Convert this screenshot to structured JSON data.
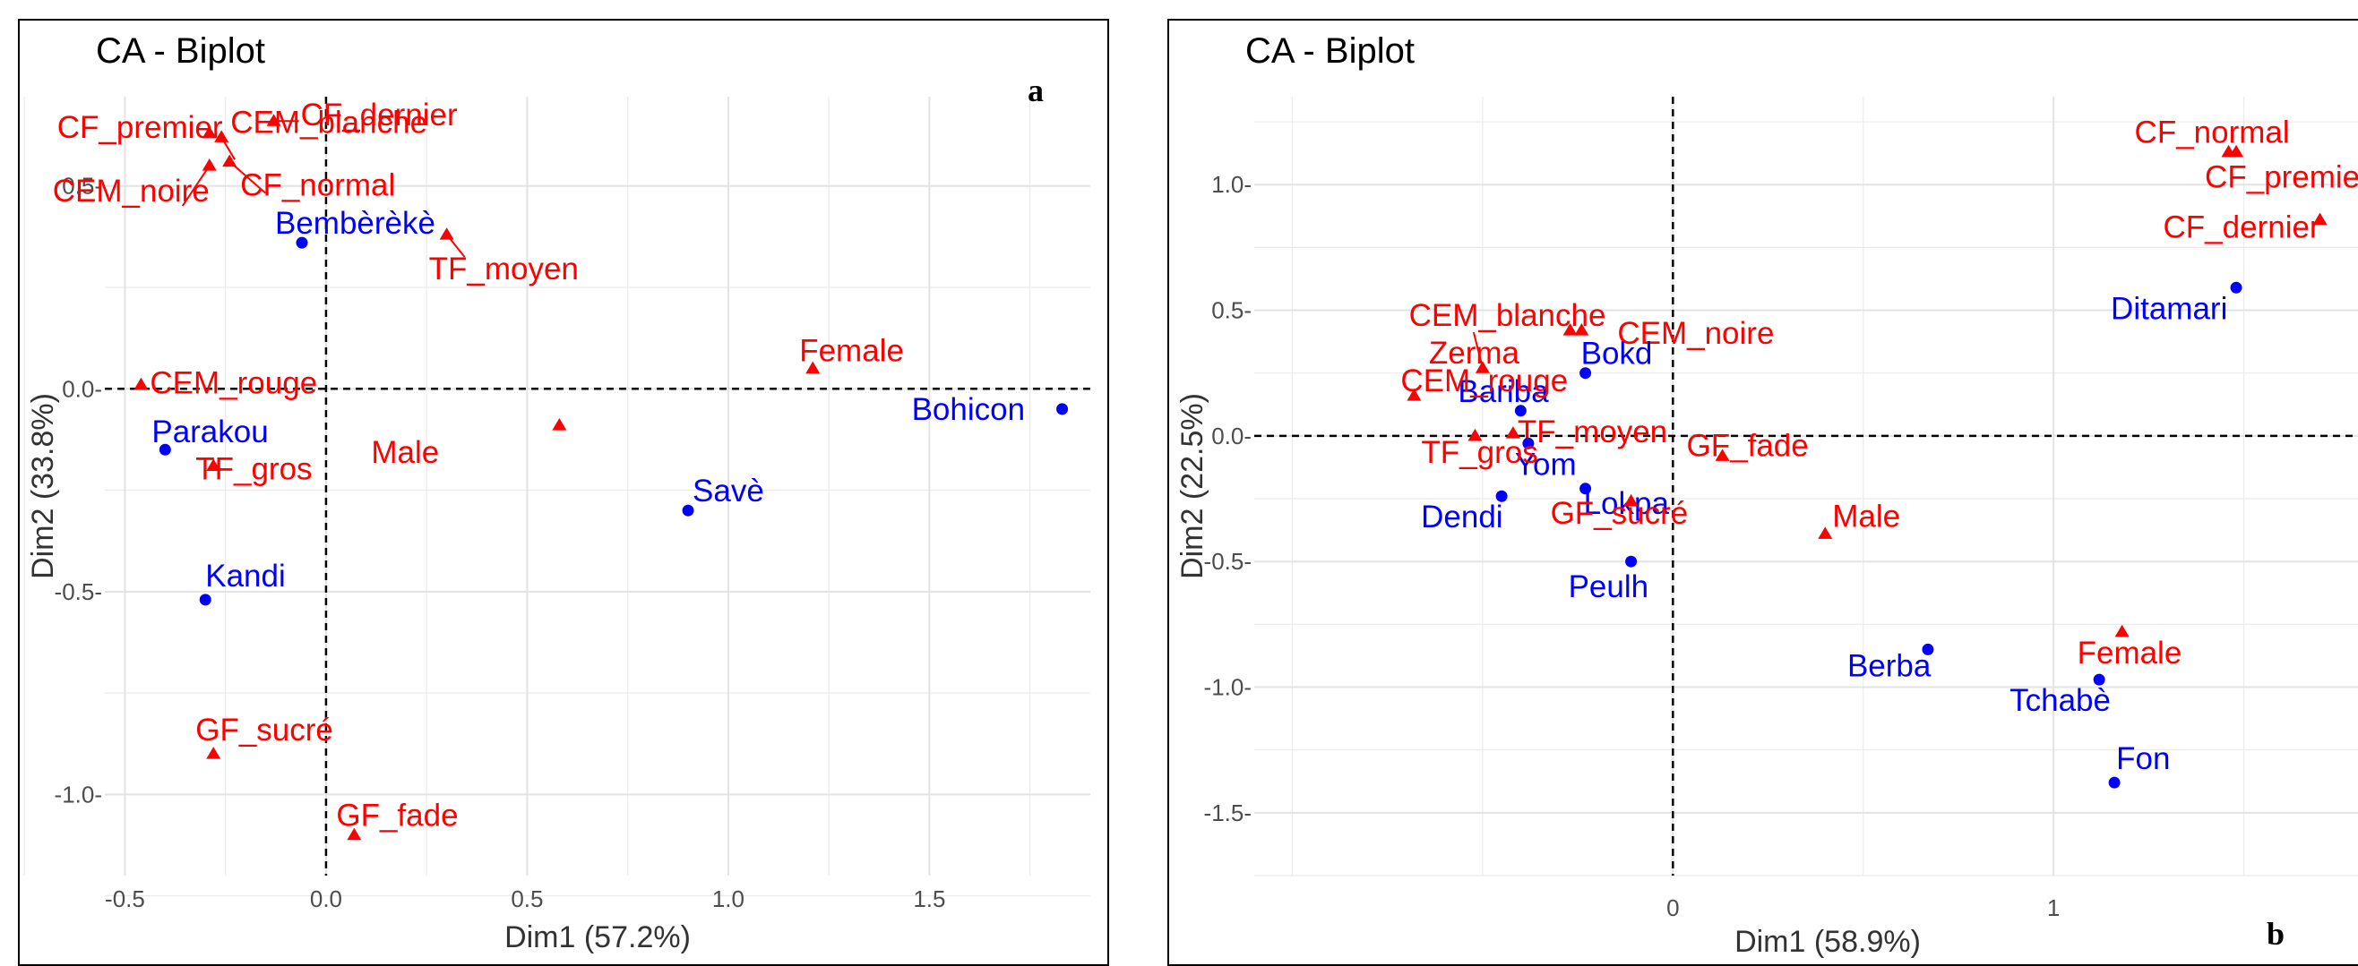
{
  "colors": {
    "row": "#ff0000",
    "col": "#0000ff",
    "grid": "#ebebeb",
    "axis": "#333333"
  },
  "chart_data": [
    {
      "type": "scatter",
      "title": "CA - Biplot",
      "panel_letter": "a",
      "xlabel": "Dim1 (57.2%)",
      "ylabel": "Dim2 (33.8%)",
      "xlim": [
        -0.55,
        1.9
      ],
      "ylim": [
        -1.2,
        0.72
      ],
      "xticks": [
        -0.5,
        0.0,
        0.5,
        1.0,
        1.5
      ],
      "xtick_labels": [
        "-0.5",
        "0.0",
        "0.5",
        "1.0",
        "1.5"
      ],
      "yticks": [
        -1.0,
        -0.5,
        0.0,
        0.5
      ],
      "ytick_labels": [
        "-1.0-",
        "-0.5-",
        "0.0-",
        "0.5-"
      ],
      "grid": true,
      "points": [
        {
          "label": "CF_premier",
          "x": -0.29,
          "y": 0.63,
          "group": "row"
        },
        {
          "label": "CF_dernier",
          "x": -0.13,
          "y": 0.66,
          "group": "row"
        },
        {
          "label": "CEM_blanche",
          "x": -0.26,
          "y": 0.62,
          "group": "row"
        },
        {
          "label": "CEM_noire",
          "x": -0.29,
          "y": 0.55,
          "group": "row"
        },
        {
          "label": "CF_normal",
          "x": -0.24,
          "y": 0.56,
          "group": "row"
        },
        {
          "label": "TF_moyen",
          "x": 0.3,
          "y": 0.38,
          "group": "row"
        },
        {
          "label": "Bembèrèkè",
          "x": -0.06,
          "y": 0.36,
          "group": "col"
        },
        {
          "label": "Female",
          "x": 1.21,
          "y": 0.05,
          "group": "row"
        },
        {
          "label": "CEM_rouge",
          "x": -0.46,
          "y": 0.01,
          "group": "row"
        },
        {
          "label": "Bohicon",
          "x": 1.83,
          "y": -0.05,
          "group": "col"
        },
        {
          "label": "Male",
          "x": 0.58,
          "y": -0.09,
          "group": "row"
        },
        {
          "label": "Parakou",
          "x": -0.4,
          "y": -0.15,
          "group": "col"
        },
        {
          "label": "TF_gros",
          "x": -0.28,
          "y": -0.19,
          "group": "row"
        },
        {
          "label": "Savè",
          "x": 0.9,
          "y": -0.3,
          "group": "col"
        },
        {
          "label": "Kandi",
          "x": -0.3,
          "y": -0.52,
          "group": "col"
        },
        {
          "label": "GF_sucré",
          "x": -0.28,
          "y": -0.9,
          "group": "row"
        },
        {
          "label": "GF_fade",
          "x": 0.07,
          "y": -1.1,
          "group": "row"
        }
      ]
    },
    {
      "type": "scatter",
      "title": "CA - Biplot",
      "panel_letter": "b",
      "xlabel": "Dim1 (58.9%)",
      "ylabel": "Dim2 (22.5%)",
      "xlim": [
        -1.1,
        1.8
      ],
      "ylim": [
        -1.75,
        1.35
      ],
      "xticks": [
        0,
        1
      ],
      "xtick_labels": [
        "0",
        "1"
      ],
      "yticks": [
        -1.5,
        -1.0,
        -0.5,
        0.0,
        0.5,
        1.0
      ],
      "ytick_labels": [
        "-1.5-",
        "-1.0-",
        "-0.5-",
        "0.0-",
        "0.5-",
        "1.0-"
      ],
      "grid": true,
      "points": [
        {
          "label": "CF_normal",
          "x": 1.46,
          "y": 1.13,
          "group": "row"
        },
        {
          "label": "CF_premier",
          "x": 1.48,
          "y": 1.13,
          "group": "row"
        },
        {
          "label": "CF_dernier",
          "x": 1.7,
          "y": 0.86,
          "group": "row"
        },
        {
          "label": "Ditamari",
          "x": 1.48,
          "y": 0.59,
          "group": "col"
        },
        {
          "label": "CEM_blanche",
          "x": -0.27,
          "y": 0.42,
          "group": "row"
        },
        {
          "label": "CEM_noire",
          "x": -0.24,
          "y": 0.42,
          "group": "row"
        },
        {
          "label": "Zerma",
          "x": -0.5,
          "y": 0.27,
          "group": "row"
        },
        {
          "label": "Bokd",
          "x": -0.23,
          "y": 0.25,
          "group": "col"
        },
        {
          "label": "Bariba",
          "x": -0.4,
          "y": 0.1,
          "group": "col"
        },
        {
          "label": "CEM_rouge",
          "x": -0.68,
          "y": 0.16,
          "group": "row"
        },
        {
          "label": "TF_moyen",
          "x": -0.42,
          "y": 0.01,
          "group": "row"
        },
        {
          "label": "Yom",
          "x": -0.38,
          "y": -0.03,
          "group": "col"
        },
        {
          "label": "TF_gros",
          "x": -0.52,
          "y": 0.0,
          "group": "row"
        },
        {
          "label": "GF_fade",
          "x": 0.13,
          "y": -0.08,
          "group": "row"
        },
        {
          "label": "Dendi",
          "x": -0.45,
          "y": -0.24,
          "group": "col"
        },
        {
          "label": "Lokpa",
          "x": -0.23,
          "y": -0.21,
          "group": "col"
        },
        {
          "label": "GF_sucré",
          "x": -0.11,
          "y": -0.26,
          "group": "row"
        },
        {
          "label": "Male",
          "x": 0.4,
          "y": -0.39,
          "group": "row"
        },
        {
          "label": "Peulh",
          "x": -0.11,
          "y": -0.5,
          "group": "col"
        },
        {
          "label": "Berba",
          "x": 0.67,
          "y": -0.85,
          "group": "col"
        },
        {
          "label": "Female",
          "x": 1.18,
          "y": -0.78,
          "group": "row"
        },
        {
          "label": "Tchabè",
          "x": 1.12,
          "y": -0.97,
          "group": "col"
        },
        {
          "label": "Fon",
          "x": 1.16,
          "y": -1.38,
          "group": "col"
        }
      ]
    }
  ]
}
